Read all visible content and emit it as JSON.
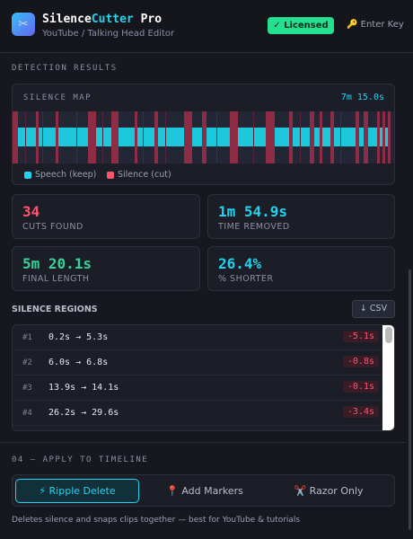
{
  "header": {
    "title_main": "Silence",
    "title_accent": "Cutter",
    "title_suffix": "Pro",
    "subtitle": "YouTube / Talking Head Editor",
    "badge": "✓ Licensed",
    "key_link": "🔑 Enter Key"
  },
  "detection": {
    "heading": "DETECTION RESULTS",
    "map": {
      "title": "SILENCE MAP",
      "duration": "7m 15.0s",
      "legend": [
        "Speech (keep)",
        "Silence (cut)"
      ]
    },
    "stats": [
      {
        "value": "34",
        "label": "CUTS FOUND"
      },
      {
        "value": "1m 54.9s",
        "label": "TIME REMOVED"
      },
      {
        "value": "5m 20.1s",
        "label": "FINAL LENGTH"
      },
      {
        "value": "26.4%",
        "label": "% SHORTER"
      }
    ]
  },
  "regions": {
    "heading": "SILENCE REGIONS",
    "export": "↓ CSV",
    "rows": [
      {
        "index": "#1",
        "range": "0.2s → 5.3s",
        "delta": "-5.1s"
      },
      {
        "index": "#2",
        "range": "6.0s → 6.8s",
        "delta": "-0.8s"
      },
      {
        "index": "#3",
        "range": "13.9s → 14.1s",
        "delta": "-0.1s"
      },
      {
        "index": "#4",
        "range": "26.2s → 29.6s",
        "delta": "-3.4s"
      }
    ]
  },
  "apply": {
    "heading": "04 — APPLY TO TIMELINE",
    "buttons": [
      "⚡ Ripple Delete",
      "📍 Add Markers",
      "✂️ Razor Only"
    ],
    "note": "Deletes silence and snaps clips together — best for YouTube & tutorials"
  }
}
